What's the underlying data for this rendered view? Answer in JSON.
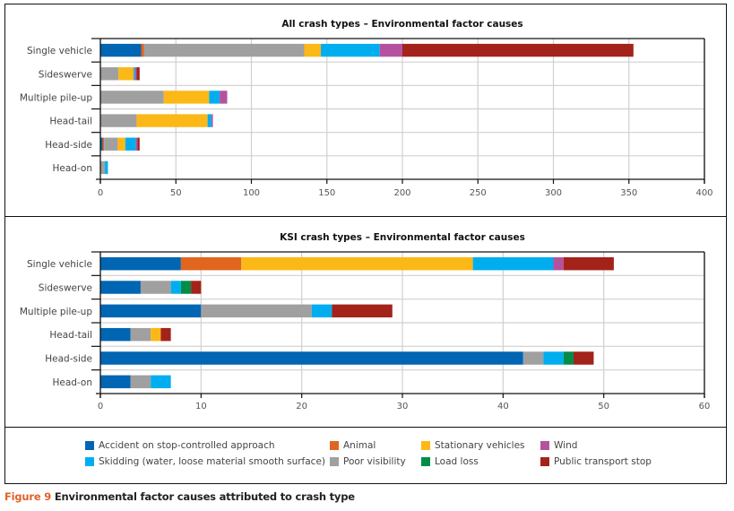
{
  "caption": {
    "figure_label": "Figure 9",
    "text": " Environmental factor causes attributed to crash type"
  },
  "legend": [
    {
      "name": "Accident on stop-controlled approach",
      "color": "#0066b3"
    },
    {
      "name": "Skidding (water, loose material smooth surface)",
      "color": "#00aeef"
    },
    {
      "name": "Animal",
      "color": "#e0651f"
    },
    {
      "name": "Poor visibility",
      "color": "#a0a0a0"
    },
    {
      "name": "Stationary vehicles",
      "color": "#fbb816"
    },
    {
      "name": "Load loss",
      "color": "#008d48"
    },
    {
      "name": "Wind",
      "color": "#b5529f"
    },
    {
      "name": "Public transport stop",
      "color": "#a3231a"
    }
  ],
  "chart_data": [
    {
      "type": "bar",
      "orientation": "horizontal",
      "stacked": true,
      "title": "All crash types – Environmental factor causes",
      "xlabel": "",
      "ylabel": "",
      "xlim": [
        0,
        400
      ],
      "xticks": [
        0,
        50,
        100,
        150,
        200,
        250,
        300,
        350,
        400
      ],
      "grid": true,
      "categories": [
        "Single vehicle",
        "Sideswerve",
        "Multiple pile-up",
        "Head-tail",
        "Head-side",
        "Head-on"
      ],
      "series": [
        {
          "name": "Accident on stop-controlled approach",
          "color": "#0066b3",
          "values": [
            27,
            0,
            0,
            0,
            1.5,
            0
          ]
        },
        {
          "name": "Animal",
          "color": "#e0651f",
          "values": [
            2,
            0,
            0,
            0,
            1,
            0
          ]
        },
        {
          "name": "Poor visibility",
          "color": "#a0a0a0",
          "values": [
            106,
            12,
            42,
            24,
            9,
            3
          ]
        },
        {
          "name": "Stationary vehicles",
          "color": "#fbb816",
          "values": [
            11,
            10,
            30,
            47,
            5,
            0
          ]
        },
        {
          "name": "Skidding (water, loose material smooth surface)",
          "color": "#00aeef",
          "values": [
            39,
            1,
            7,
            2.5,
            7,
            2
          ]
        },
        {
          "name": "Load loss",
          "color": "#008d48",
          "values": [
            0,
            0,
            0,
            0,
            0,
            0
          ]
        },
        {
          "name": "Wind",
          "color": "#b5529f",
          "values": [
            15,
            1,
            5,
            1,
            1,
            0
          ]
        },
        {
          "name": "Public transport stop",
          "color": "#a3231a",
          "values": [
            153,
            2,
            0,
            0,
            1.5,
            0
          ]
        }
      ]
    },
    {
      "type": "bar",
      "orientation": "horizontal",
      "stacked": true,
      "title": "KSI crash types – Environmental factor causes",
      "xlabel": "",
      "ylabel": "",
      "xlim": [
        0,
        60
      ],
      "xticks": [
        0,
        10,
        20,
        30,
        40,
        50,
        60
      ],
      "grid": true,
      "categories": [
        "Single vehicle",
        "Sideswerve",
        "Multiple pile-up",
        "Head-tail",
        "Head-side",
        "Head-on"
      ],
      "series": [
        {
          "name": "Accident on stop-controlled approach",
          "color": "#0066b3",
          "values": [
            8,
            4,
            10,
            3,
            42,
            3
          ]
        },
        {
          "name": "Animal",
          "color": "#e0651f",
          "values": [
            6,
            0,
            0,
            0,
            0,
            0
          ]
        },
        {
          "name": "Poor visibility",
          "color": "#a0a0a0",
          "values": [
            0,
            3,
            11,
            2,
            2,
            2
          ]
        },
        {
          "name": "Stationary vehicles",
          "color": "#fbb816",
          "values": [
            23,
            0,
            0,
            1,
            0,
            0
          ]
        },
        {
          "name": "Skidding (water, loose material smooth surface)",
          "color": "#00aeef",
          "values": [
            8,
            1,
            2,
            0,
            2,
            2
          ]
        },
        {
          "name": "Load loss",
          "color": "#008d48",
          "values": [
            0,
            1,
            0,
            0,
            1,
            0
          ]
        },
        {
          "name": "Wind",
          "color": "#b5529f",
          "values": [
            1,
            0,
            0,
            0,
            0,
            0
          ]
        },
        {
          "name": "Public transport stop",
          "color": "#a3231a",
          "values": [
            5,
            1,
            6,
            1,
            2,
            0
          ]
        }
      ]
    }
  ]
}
